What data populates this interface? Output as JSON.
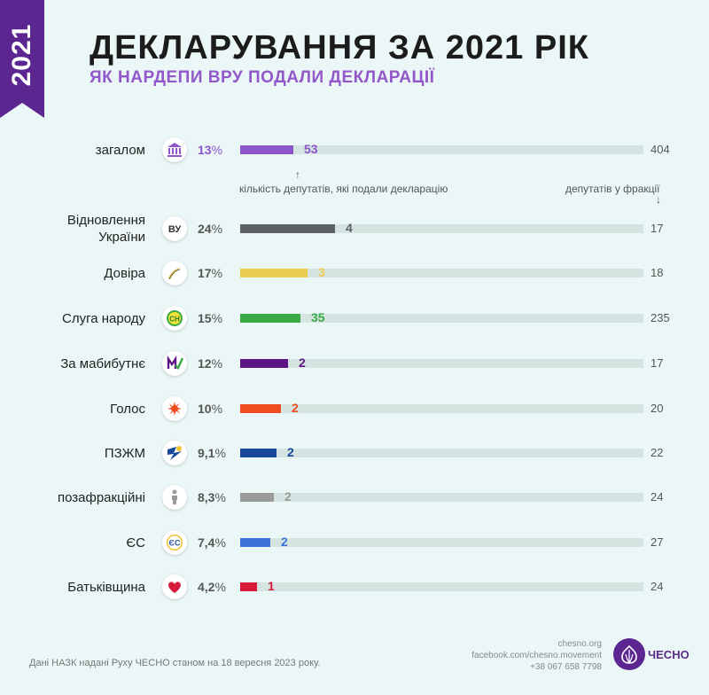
{
  "header": {
    "year": "2021",
    "title": "ДЕКЛАРУВАННЯ ЗА 2021 РІК",
    "subtitle": "ЯК НАРДЕПИ ВРУ ПОДАЛИ ДЕКЛАРАЦІЇ"
  },
  "notes": {
    "submitted": "кількість депутатів, які подали декларацію",
    "faction": "депутатів у фракції",
    "arrow_up": "↑",
    "arrow_down": "↓"
  },
  "footer": {
    "source": "Дані НАЗК надані Руху ЧЕСНО станом на 18 вересня 2023 року.",
    "site": "chesno.org",
    "facebook": "facebook.com/chesno.movement",
    "phone": "+38 067 658 7798",
    "logo_text": "ЧЕСНО"
  },
  "chart_data": {
    "type": "bar",
    "orientation": "horizontal",
    "title": "ДЕКЛАРУВАННЯ ЗА 2021 РІК",
    "subtitle": "ЯК НАРДЕПИ ВРУ ПОДАЛИ ДЕКЛАРАЦІЇ",
    "categories": [
      "загалом",
      "Відновлення України",
      "Довіра",
      "Слуга народу",
      "За мабибутнє",
      "Голос",
      "ПЗЖМ",
      "позафракційні",
      "ЄС",
      "Батьківщина"
    ],
    "series": [
      {
        "values": [
          53,
          4,
          3,
          35,
          2,
          2,
          2,
          2,
          2,
          1
        ]
      }
    ],
    "totals": [
      404,
      17,
      18,
      235,
      17,
      20,
      22,
      24,
      27,
      24
    ],
    "percents": [
      "13",
      "24",
      "17",
      "15",
      "12",
      "10",
      "9,1",
      "8,3",
      "7,4",
      "4,2"
    ],
    "percent_symbol": "%",
    "colors": [
      "#8c55cc",
      "#5b6164",
      "#eccb51",
      "#3aaa46",
      "#5c1582",
      "#ef4d1f",
      "#15489a",
      "#9a9a9a",
      "#3d71da",
      "#d8193a"
    ],
    "value_colors": [
      "#8c55cc",
      "#5b6164",
      "#eccb51",
      "#3aaa46",
      "#5c1582",
      "#ef4d1f",
      "#15489a",
      "#9a9a9a",
      "#3d71da",
      "#d8193a"
    ],
    "icons": [
      "parliament-icon",
      "vu-icon",
      "swoosh-icon",
      "sn-icon",
      "m-icon",
      "golos-icon",
      "pzzhm-icon",
      "person-icon",
      "es-icon",
      "heart-icon"
    ],
    "icon_labels": [
      "",
      "ВУ",
      "",
      "СН",
      "М",
      "",
      "",
      "",
      "ЄС",
      ""
    ],
    "legend": "none",
    "grid": false
  }
}
